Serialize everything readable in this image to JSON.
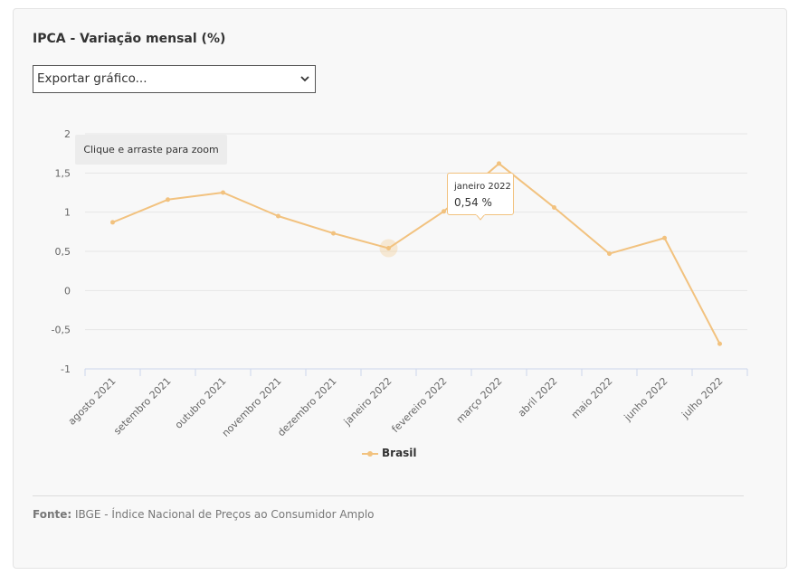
{
  "title": "IPCA - Variação mensal (%)",
  "export": {
    "label": "Exportar gráfico..."
  },
  "zoom_hint": "Clique e arraste para zoom",
  "tooltip": {
    "date": "janeiro 2022",
    "value": "0,54 %"
  },
  "legend": {
    "label": "Brasil"
  },
  "source": {
    "prefix": "Fonte:",
    "text": "IBGE - Índice Nacional de Preços ao Consumidor Amplo"
  },
  "colors": {
    "series": "#f2c27f",
    "grid": "#e6e6e6",
    "axis": "#ccd6eb",
    "text": "#666666"
  },
  "chart_data": {
    "type": "line",
    "title": "IPCA - Variação mensal (%)",
    "categories": [
      "agosto 2021",
      "setembro 2021",
      "outubro 2021",
      "novembro 2021",
      "dezembro 2021",
      "janeiro 2022",
      "fevereiro 2022",
      "março 2022",
      "abril 2022",
      "maio 2022",
      "junho 2022",
      "julho 2022"
    ],
    "series": [
      {
        "name": "Brasil",
        "values": [
          0.87,
          1.16,
          1.25,
          0.95,
          0.73,
          0.54,
          1.01,
          1.62,
          1.06,
          0.47,
          0.67,
          -0.68
        ]
      }
    ],
    "ylim": [
      -1,
      2
    ],
    "yticks": [
      "2",
      "1,5",
      "1",
      "0,5",
      "0",
      "-0,5",
      "-1"
    ],
    "ytick_values": [
      2,
      1.5,
      1,
      0.5,
      0,
      -0.5,
      -1
    ],
    "highlight_index": 5,
    "grid": true,
    "legend_position": "bottom-center"
  }
}
